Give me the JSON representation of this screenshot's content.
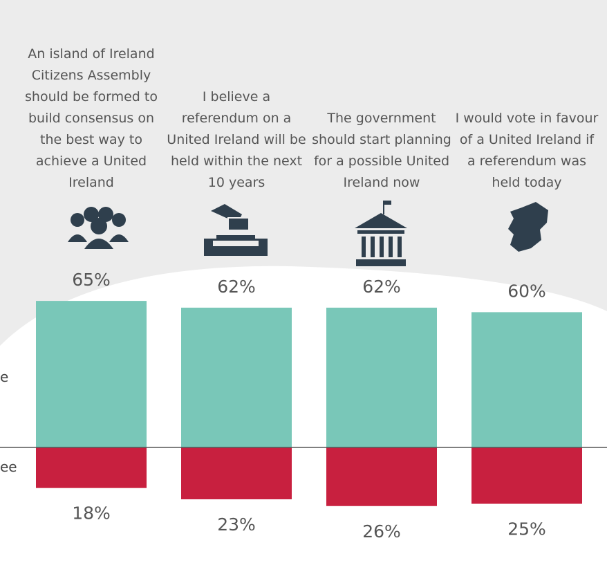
{
  "chart_data": {
    "type": "diverging_bar",
    "categories": [
      "An island of Ireland Citizens Assembly should be formed to build consensus on the best way to achieve a United Ireland",
      "I believe a referendum on a United Ireland will be held within the next 10 years",
      "The government should start planning for a possible United Ireland now",
      "I would vote in favour of a United Ireland if a referendum was held today"
    ],
    "series": [
      {
        "name": "e",
        "color": "#79c7b8",
        "direction": "up",
        "values": [
          65,
          62,
          62,
          60
        ],
        "value_labels": [
          "65%",
          "62%",
          "62%",
          "60%"
        ]
      },
      {
        "name": "ee",
        "color": "#c8203f",
        "direction": "down",
        "values": [
          18,
          23,
          26,
          25
        ],
        "value_labels": [
          "18%",
          "23%",
          "26%",
          "25%"
        ]
      }
    ]
  }
}
